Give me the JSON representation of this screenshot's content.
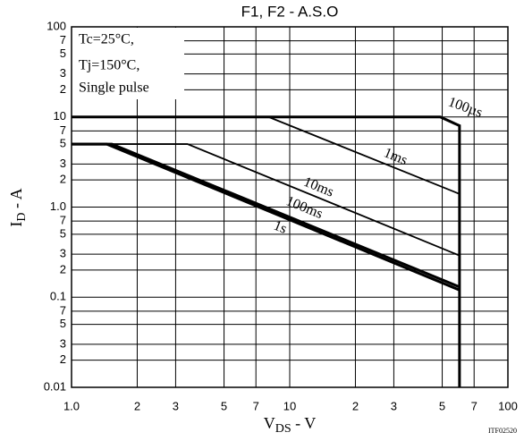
{
  "chart_data": {
    "type": "line",
    "title": "F1, F2 - A.S.O",
    "x_label": {
      "main": "V",
      "sub": "DS",
      "unit": " - V"
    },
    "y_label": {
      "main": "I",
      "sub": "D",
      "unit": " - A"
    },
    "annotation": [
      "Tc=25°C,",
      "Tj=150°C,",
      "Single pulse"
    ],
    "footnote": "ITF02520",
    "log_x": true,
    "log_y": true,
    "grid": true,
    "xlim": [
      1,
      100
    ],
    "xticks": [
      {
        "value": 1,
        "label": "1.0"
      },
      2,
      3,
      5,
      7,
      10,
      {
        "value": 20,
        "label": "2"
      },
      {
        "value": 30,
        "label": "3"
      },
      {
        "value": 50,
        "label": "5"
      },
      {
        "value": 70,
        "label": "7"
      },
      100
    ],
    "ylim": [
      0.01,
      100
    ],
    "yticks": [
      100,
      {
        "value": 70,
        "label": "7"
      },
      {
        "value": 50,
        "label": "5"
      },
      {
        "value": 30,
        "label": "3"
      },
      {
        "value": 20,
        "label": "2"
      },
      10,
      {
        "value": 7,
        "label": "7"
      },
      {
        "value": 5,
        "label": "5"
      },
      {
        "value": 3,
        "label": "3"
      },
      {
        "value": 2,
        "label": "2"
      },
      {
        "value": 1,
        "label": "1.0"
      },
      {
        "value": 0.7,
        "label": "7"
      },
      {
        "value": 0.5,
        "label": "5"
      },
      {
        "value": 0.3,
        "label": "3"
      },
      {
        "value": 0.2,
        "label": "2"
      },
      0.1,
      {
        "value": 0.07,
        "label": "7"
      },
      {
        "value": 0.05,
        "label": "5"
      },
      {
        "value": 0.03,
        "label": "3"
      },
      {
        "value": 0.02,
        "label": "2"
      },
      0.01
    ],
    "series": [
      {
        "name": "100µs",
        "color": "#000000",
        "x": [
          1,
          49,
          60,
          60
        ],
        "values": [
          10,
          10,
          8,
          0.01
        ]
      },
      {
        "name": "1ms",
        "color": "#000000",
        "x": [
          8,
          60
        ],
        "values": [
          10,
          1.4
        ]
      },
      {
        "name": "10ms",
        "color": "#000000",
        "x": [
          1,
          3.4,
          60
        ],
        "values": [
          5,
          5,
          0.29
        ]
      },
      {
        "name": "100ms",
        "color": "#000000",
        "x": [
          1,
          1.53,
          60
        ],
        "values": [
          5,
          5,
          0.13
        ]
      },
      {
        "name": "1s",
        "color": "#000000",
        "x": [
          1,
          1.45,
          60
        ],
        "values": [
          5,
          5,
          0.12
        ]
      }
    ]
  }
}
